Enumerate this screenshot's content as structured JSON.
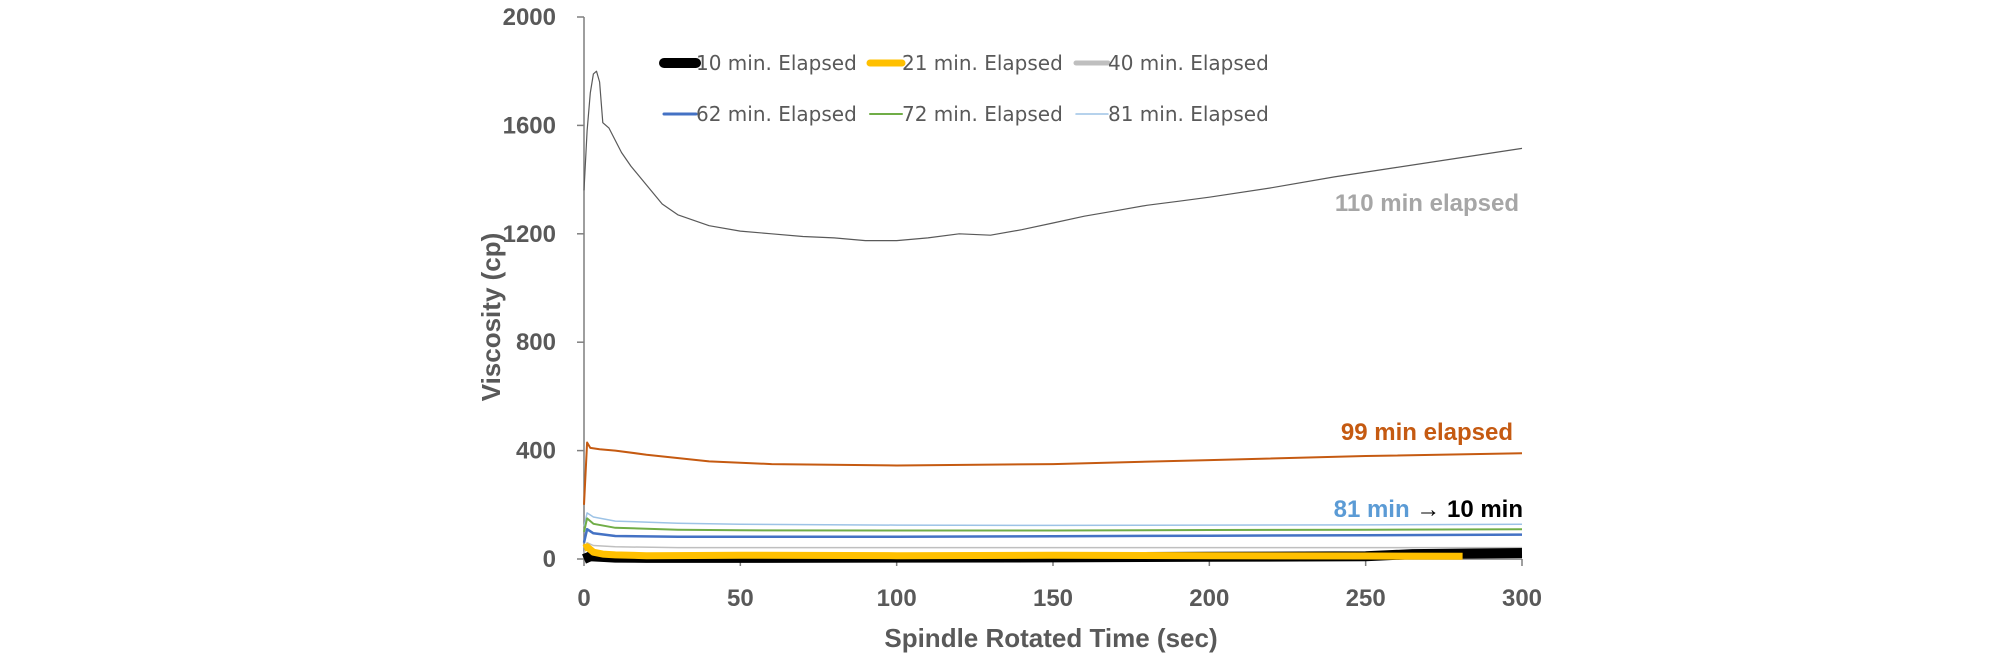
{
  "chart_data": {
    "type": "line",
    "xlabel": "Spindle Rotated Time (sec)",
    "ylabel": "Viscosity (cp)",
    "xlim": [
      0,
      300
    ],
    "ylim": [
      0,
      2000
    ],
    "xticks": [
      0,
      50,
      100,
      150,
      200,
      250,
      300
    ],
    "yticks": [
      0,
      400,
      800,
      1200,
      1600,
      2000
    ],
    "grid": false,
    "legend_position": "top",
    "series": [
      {
        "name": "10 min. Elapsed",
        "color": "#000000",
        "x": [
          0,
          2,
          5,
          10,
          20,
          50,
          100,
          150,
          200,
          250,
          265,
          300
        ],
        "y": [
          0,
          10,
          8,
          5,
          4,
          4,
          5,
          6,
          8,
          10,
          18,
          22
        ]
      },
      {
        "name": "21 min. Elapsed",
        "color": "#FFC000",
        "x": [
          0,
          1,
          3,
          6,
          10,
          20,
          50,
          100,
          150,
          200,
          250,
          281
        ],
        "y": [
          40,
          45,
          25,
          18,
          15,
          12,
          14,
          12,
          14,
          12,
          11,
          10
        ]
      },
      {
        "name": "40 min. Elapsed",
        "color": "#BFBFBF",
        "x": [
          0,
          1,
          3,
          10,
          30,
          100,
          150,
          200,
          250,
          300
        ],
        "y": [
          20,
          60,
          50,
          45,
          42,
          42,
          42,
          42,
          42,
          42
        ]
      },
      {
        "name": "62 min. Elapsed",
        "color": "#4472C4",
        "x": [
          0,
          1,
          3,
          10,
          30,
          50,
          100,
          150,
          200,
          250,
          300
        ],
        "y": [
          60,
          110,
          95,
          85,
          82,
          82,
          82,
          84,
          86,
          88,
          90
        ]
      },
      {
        "name": "72 min. Elapsed",
        "color": "#70AD47",
        "x": [
          0,
          1,
          3,
          10,
          30,
          50,
          100,
          150,
          200,
          250,
          300
        ],
        "y": [
          100,
          150,
          130,
          115,
          108,
          106,
          105,
          105,
          107,
          108,
          110
        ]
      },
      {
        "name": "81 min. Elapsed",
        "color": "#9DC3E6",
        "x": [
          0,
          1,
          3,
          10,
          30,
          50,
          100,
          150,
          200,
          250,
          300
        ],
        "y": [
          120,
          170,
          155,
          140,
          132,
          128,
          125,
          124,
          125,
          126,
          128
        ]
      },
      {
        "color": "#C55A11",
        "x": [
          0,
          1,
          2,
          5,
          10,
          20,
          40,
          60,
          100,
          150,
          200,
          250,
          300
        ],
        "y": [
          200,
          430,
          410,
          405,
          400,
          385,
          360,
          350,
          345,
          350,
          365,
          380,
          390
        ]
      },
      {
        "color": "#595959",
        "x": [
          0,
          1,
          2,
          3,
          4,
          5,
          6,
          8,
          12,
          15,
          20,
          25,
          30,
          40,
          50,
          60,
          70,
          80,
          90,
          100,
          110,
          120,
          130,
          140,
          150,
          160,
          170,
          180,
          190,
          200,
          220,
          240,
          260,
          280,
          300
        ],
        "y": [
          1360,
          1580,
          1720,
          1790,
          1800,
          1760,
          1610,
          1590,
          1500,
          1450,
          1380,
          1310,
          1270,
          1230,
          1210,
          1200,
          1190,
          1185,
          1175,
          1175,
          1185,
          1200,
          1195,
          1215,
          1240,
          1265,
          1285,
          1305,
          1320,
          1335,
          1370,
          1410,
          1445,
          1480,
          1515
        ]
      }
    ],
    "annotations": [
      {
        "text": "110 min elapsed",
        "color": "#A6A6A6"
      },
      {
        "text": "99 min elapsed",
        "color": "#C55A11"
      },
      {
        "text": "81 min",
        "color": "#5B9BD5"
      },
      {
        "text": "→",
        "color": "#000000"
      },
      {
        "text": "10 min",
        "color": "#000000"
      }
    ]
  }
}
